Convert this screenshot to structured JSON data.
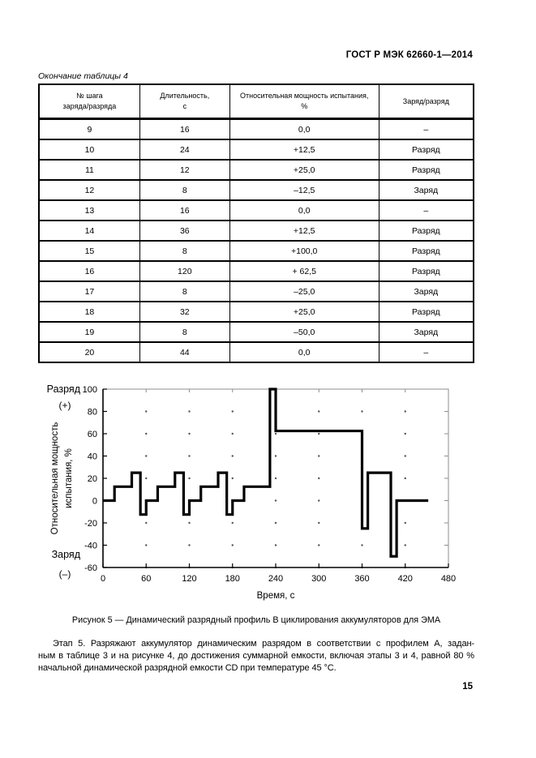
{
  "page": {
    "header": "ГОСТ Р МЭК 62660-1—2014",
    "page_number": "15"
  },
  "table_note": "Окончание таблицы 4",
  "table": {
    "columns": [
      "№ шага\nзаряда/разряда",
      "Длительность,\nс",
      "Относительная мощность испытания,\n%",
      "Заряд/разряд"
    ],
    "rows": [
      [
        "9",
        "16",
        "0,0",
        "–"
      ],
      [
        "10",
        "24",
        "+12,5",
        "Разряд"
      ],
      [
        "11",
        "12",
        "+25,0",
        "Разряд"
      ],
      [
        "12",
        "8",
        "–12,5",
        "Заряд"
      ],
      [
        "13",
        "16",
        "0,0",
        "–"
      ],
      [
        "14",
        "36",
        "+12,5",
        "Разряд"
      ],
      [
        "15",
        "8",
        "+100,0",
        "Разряд"
      ],
      [
        "16",
        "120",
        "+ 62,5",
        "Разряд"
      ],
      [
        "17",
        "8",
        "–25,0",
        "Заряд"
      ],
      [
        "18",
        "32",
        "+25,0",
        "Разряд"
      ],
      [
        "19",
        "8",
        "–50,0",
        "Заряд"
      ],
      [
        "20",
        "44",
        "0,0",
        "–"
      ]
    ]
  },
  "chart_data": {
    "type": "line",
    "subtype": "step",
    "xlabel": "Время, с",
    "ylabel_lines": [
      "Относительная мощность",
      "испытания, %"
    ],
    "top_left_label": [
      "Разряд",
      "(+)"
    ],
    "bottom_left_label": [
      "Заряд",
      "(–)"
    ],
    "xlim": [
      0,
      480
    ],
    "ylim": [
      -60,
      100
    ],
    "xticks": [
      0,
      60,
      120,
      180,
      240,
      300,
      360,
      420,
      480
    ],
    "yticks": [
      -60,
      -40,
      -20,
      0,
      20,
      40,
      60,
      80,
      100
    ],
    "grid": "dotted-intersections",
    "legend": "none",
    "line_color": "#000000",
    "steps": [
      {
        "duration": 16,
        "power": 0
      },
      {
        "duration": 24,
        "power": 12.5
      },
      {
        "duration": 12,
        "power": 25
      },
      {
        "duration": 8,
        "power": -12.5
      },
      {
        "duration": 16,
        "power": 0
      },
      {
        "duration": 24,
        "power": 12.5
      },
      {
        "duration": 12,
        "power": 25
      },
      {
        "duration": 8,
        "power": -12.5
      },
      {
        "duration": 16,
        "power": 0
      },
      {
        "duration": 24,
        "power": 12.5
      },
      {
        "duration": 12,
        "power": 25
      },
      {
        "duration": 8,
        "power": -12.5
      },
      {
        "duration": 16,
        "power": 0
      },
      {
        "duration": 36,
        "power": 12.5
      },
      {
        "duration": 8,
        "power": 100
      },
      {
        "duration": 120,
        "power": 62.5
      },
      {
        "duration": 8,
        "power": -25
      },
      {
        "duration": 32,
        "power": 25
      },
      {
        "duration": 8,
        "power": -50
      },
      {
        "duration": 44,
        "power": 0
      }
    ]
  },
  "figure_caption": "Рисунок 5 — Динамический разрядный профиль В циклирования аккумуляторов для ЭМА",
  "paragraph": {
    "lines": [
      "Этап 5. Разряжают аккумулятор динамическим разрядом в соответствии с профилем А, задан-",
      "ным в таблице 3 и на рисунке 4, до достижения суммарной емкости, включая этапы 3 и 4, равной 80 %",
      "начальной динамической разрядной емкости CD при температуре 45 °С."
    ]
  }
}
